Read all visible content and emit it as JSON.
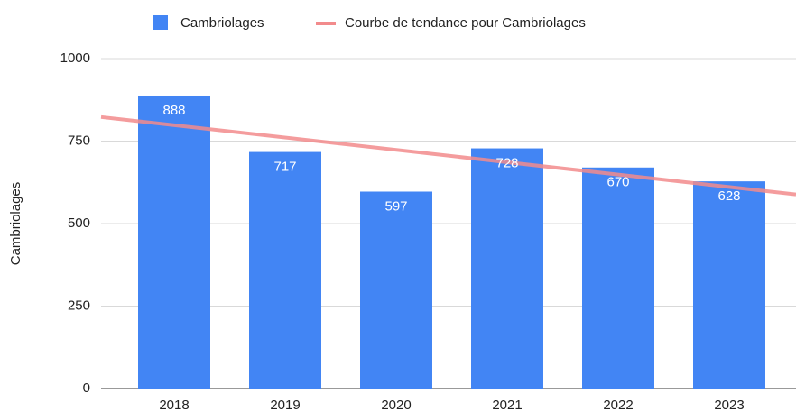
{
  "chart_data": {
    "type": "bar",
    "y_axis_label": "Cambriolages",
    "categories": [
      "2018",
      "2019",
      "2020",
      "2021",
      "2022",
      "2023"
    ],
    "series": [
      {
        "name": "Cambriolages",
        "color": "#4285f4",
        "values": [
          888,
          717,
          597,
          728,
          670,
          628
        ]
      }
    ],
    "trendline": {
      "name": "Courbe de tendance pour Cambriolages",
      "color": "#f28b8c",
      "of_series": 0
    },
    "ylim": [
      0,
      1000
    ],
    "yticks": [
      0,
      250,
      500,
      750,
      1000
    ],
    "grid": true,
    "legend": "top"
  }
}
